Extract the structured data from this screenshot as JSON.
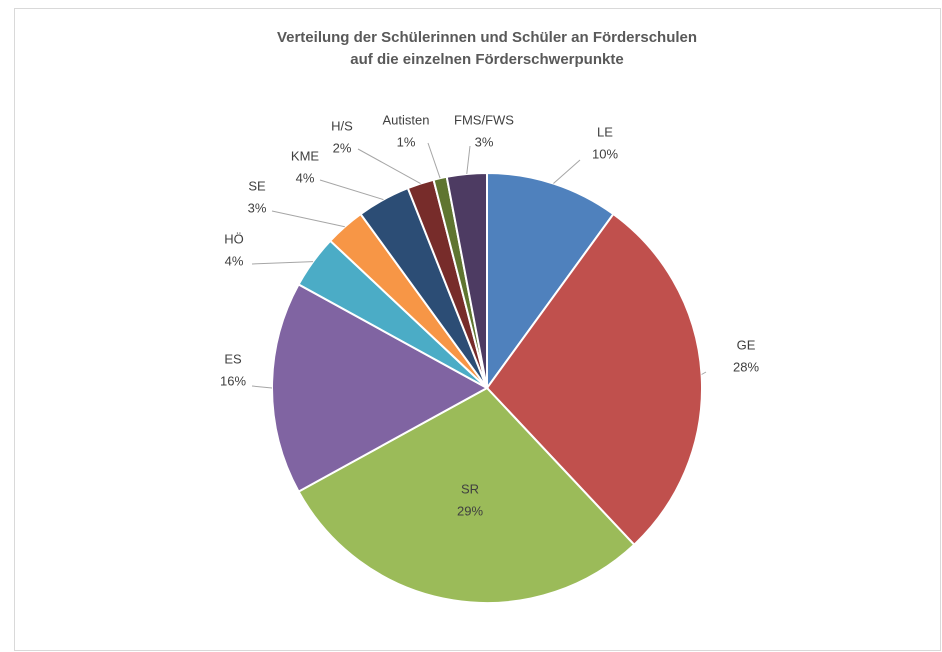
{
  "chart_data": {
    "type": "pie",
    "title": [
      "Verteilung der Schülerinnen und Schüler an Förderschulen",
      "auf die einzelnen Förderschwerpunkte"
    ],
    "categories": [
      "LE",
      "GE",
      "SR",
      "ES",
      "HÖ",
      "SE",
      "KME",
      "H/S",
      "Autisten",
      "FMS/FWS"
    ],
    "values": [
      10,
      28,
      29,
      16,
      4,
      3,
      4,
      2,
      1,
      3
    ],
    "value_labels": [
      "10%",
      "28%",
      "29%",
      "16%",
      "4%",
      "3%",
      "4%",
      "2%",
      "1%",
      "3%"
    ],
    "colors": [
      "#4f81bd",
      "#c0504d",
      "#9bbb59",
      "#8064a2",
      "#4bacc6",
      "#f79646",
      "#2c4d75",
      "#772c2a",
      "#5f7530",
      "#4d3b62"
    ]
  }
}
